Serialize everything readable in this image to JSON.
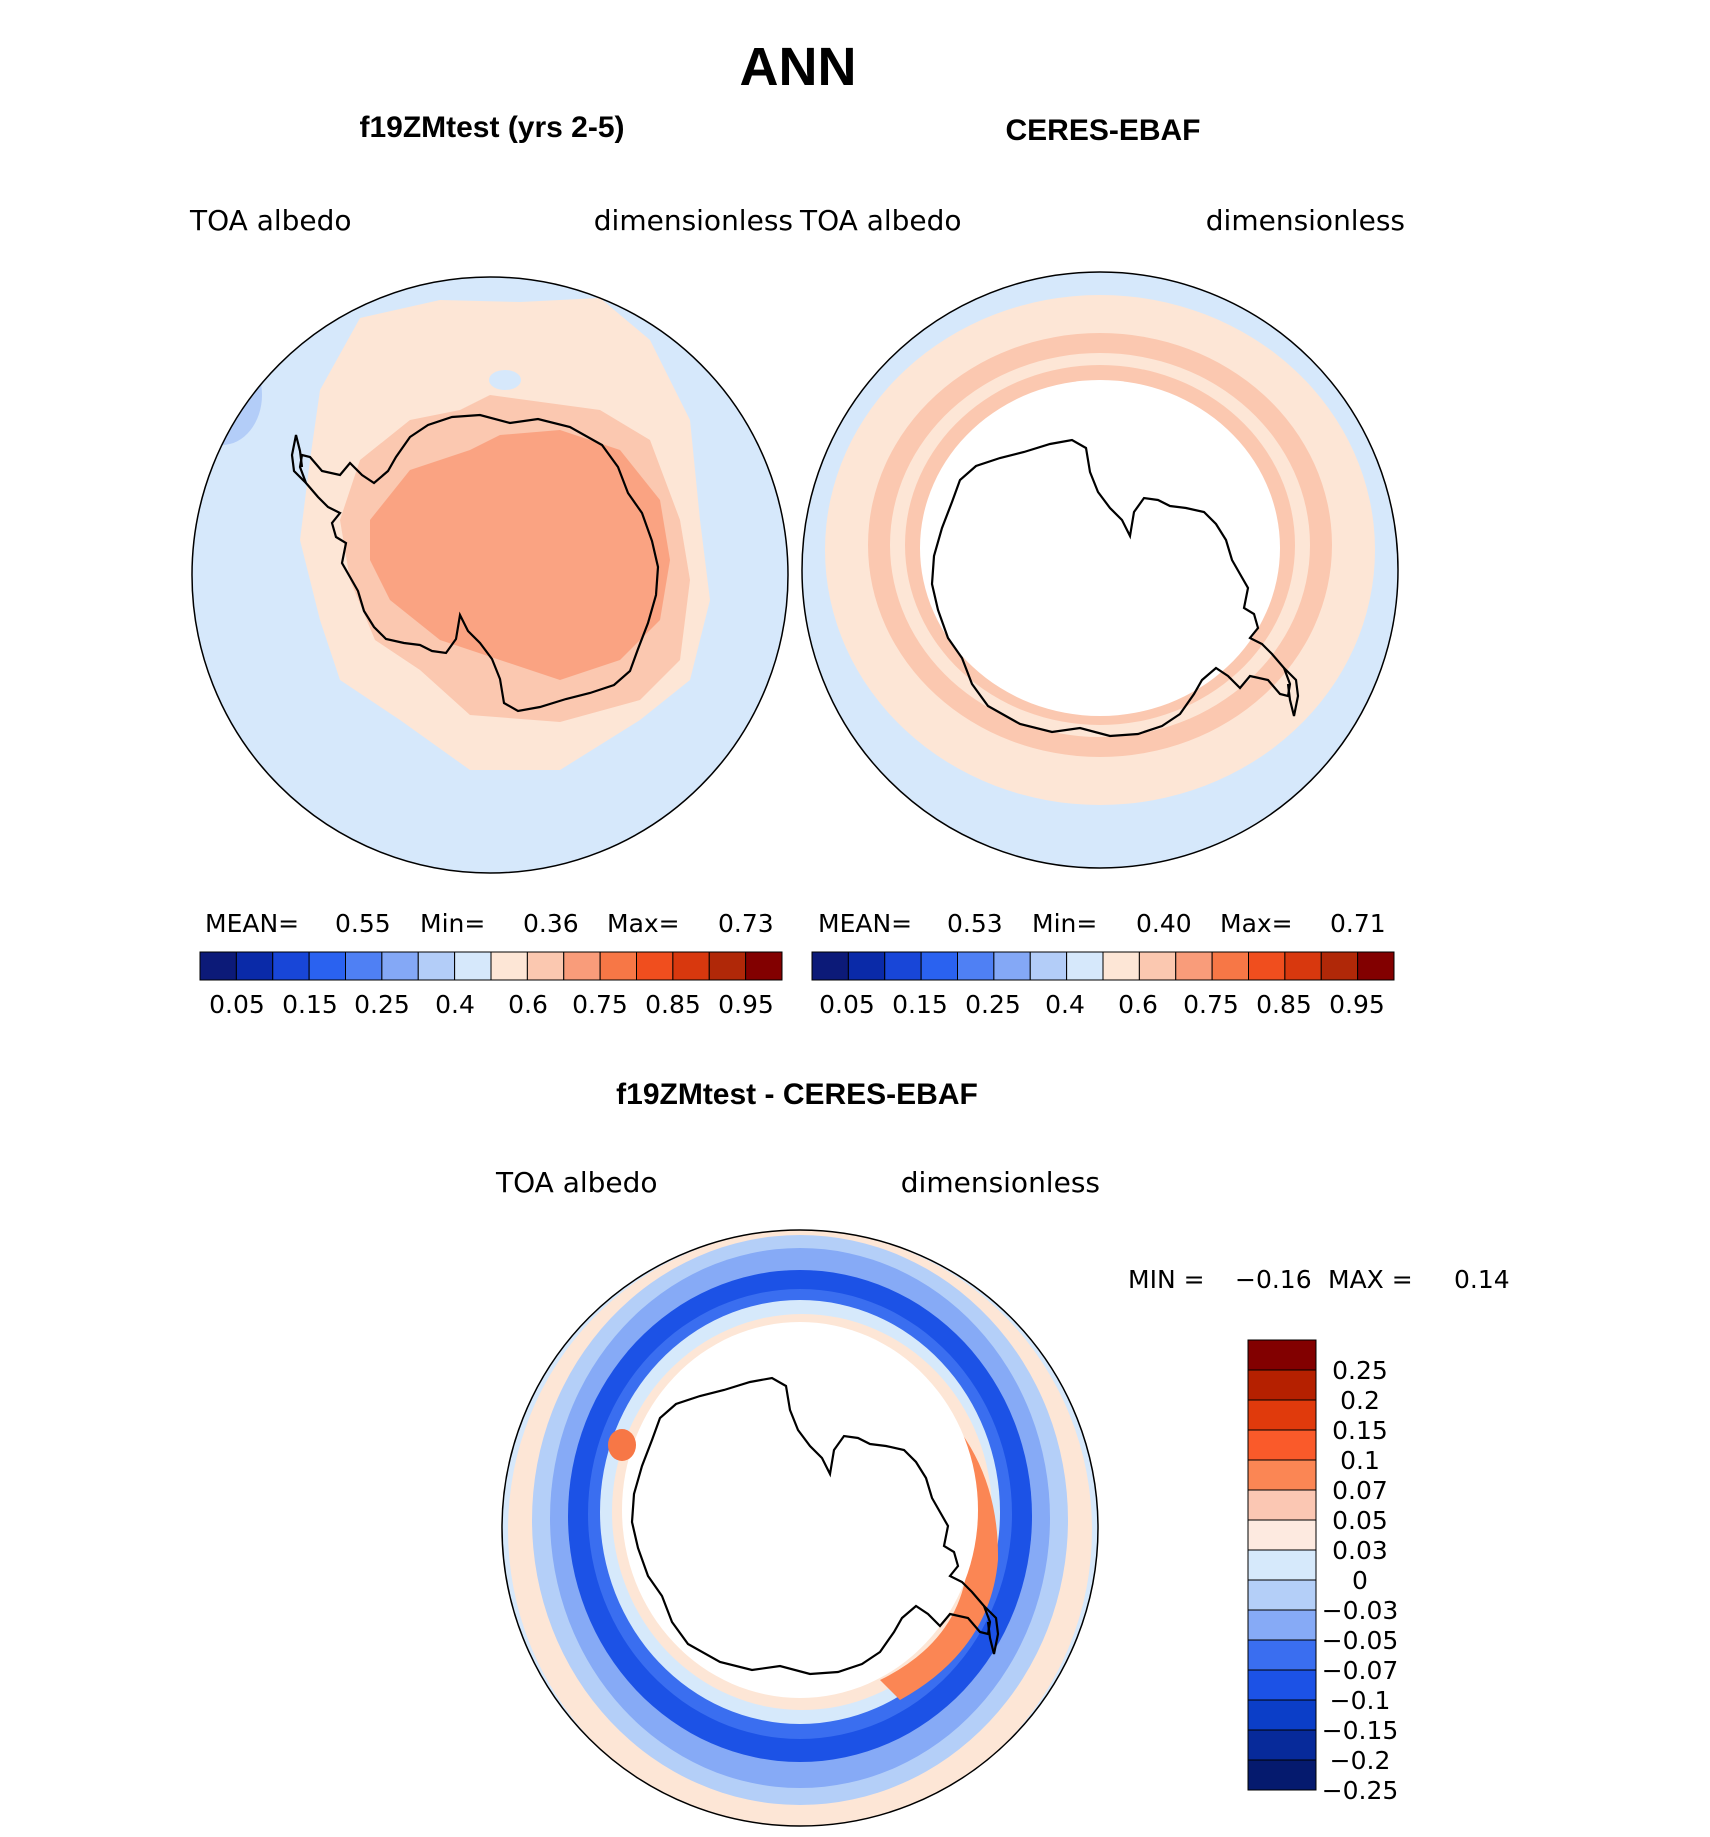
{
  "title": "ANN",
  "panels": [
    {
      "title": "f19ZMtest (yrs 2-5)",
      "variable": "TOA albedo",
      "units": "dimensionless",
      "stats": {
        "mean_label": "MEAN=",
        "mean": "0.55",
        "min_label": "Min=",
        "min": "0.36",
        "max_label": "Max=",
        "max": "0.73"
      }
    },
    {
      "title": "CERES-EBAF",
      "variable": "TOA albedo",
      "units": "dimensionless",
      "stats": {
        "mean_label": "MEAN=",
        "mean": "0.53",
        "min_label": "Min=",
        "min": "0.40",
        "max_label": "Max=",
        "max": "0.71"
      }
    }
  ],
  "colorbar": {
    "colors": [
      "#0c1a78",
      "#0a2aa8",
      "#1846d8",
      "#2a62f0",
      "#4f80f4",
      "#84a8f6",
      "#b3cdf8",
      "#d6e8fb",
      "#fde6d6",
      "#fbc8b0",
      "#f99c7a",
      "#f77746",
      "#f04e1e",
      "#d8380e",
      "#b02808",
      "#820000"
    ],
    "tick_labels": [
      "0.05",
      "0.15",
      "0.25",
      "0.4",
      "0.6",
      "0.75",
      "0.85",
      "0.95"
    ]
  },
  "difference": {
    "title": "f19ZMtest - CERES-EBAF",
    "variable": "TOA albedo",
    "units": "dimensionless",
    "min_label": "MIN =",
    "min": "−0.16",
    "max_label": "MAX =",
    "max": "0.14",
    "colorbar_colors": [
      "#820000",
      "#b52000",
      "#e03a0c",
      "#fa5a2a",
      "#fb8654",
      "#fbc7b3",
      "#fdeae0",
      "#d6e9fb",
      "#b4cff8",
      "#86aaf6",
      "#3a6ef0",
      "#1c52e6",
      "#0b3ec8",
      "#072a9a",
      "#051a6e"
    ],
    "colorbar_labels": [
      "0.25",
      "0.2",
      "0.15",
      "0.1",
      "0.07",
      "0.05",
      "0.03",
      "0",
      "−0.03",
      "−0.05",
      "−0.07",
      "−0.1",
      "−0.15",
      "−0.2",
      "−0.25"
    ]
  }
}
